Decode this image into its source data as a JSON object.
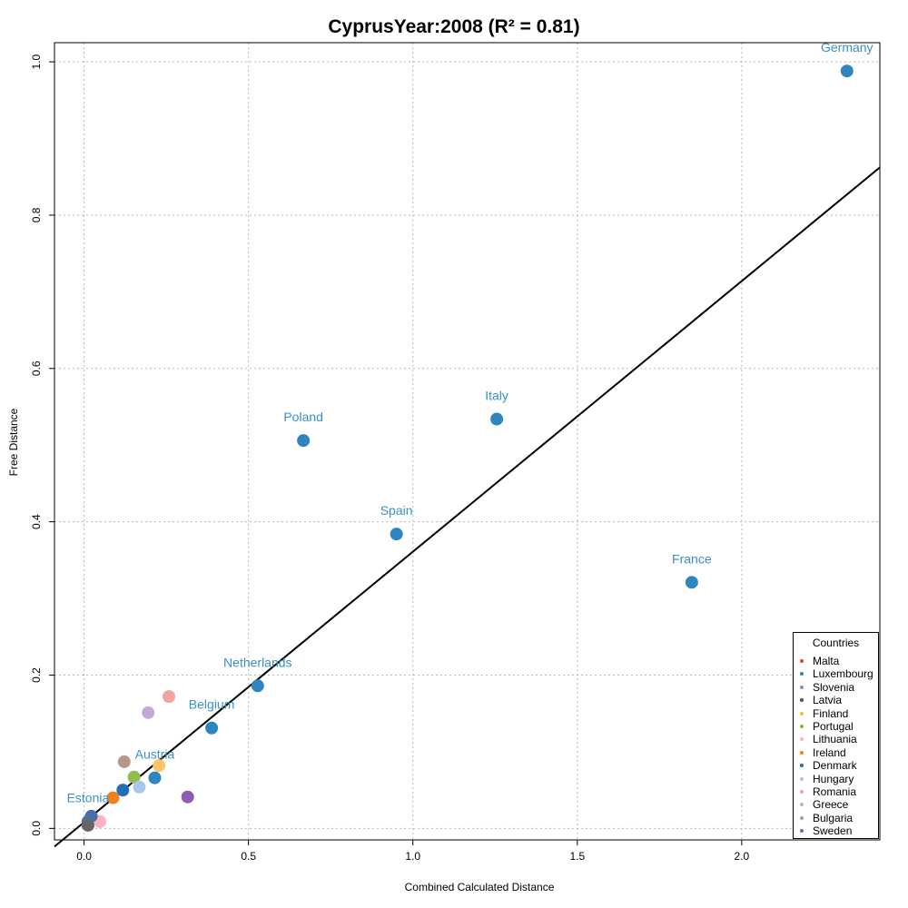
{
  "chart_data": {
    "type": "scatter",
    "title": "CyprusYear:2008 (R² = 0.81)",
    "xlabel": "Combined Calculated Distance",
    "ylabel": "Free Distance",
    "xlim": [
      -0.09,
      2.42
    ],
    "ylim": [
      -0.015,
      1.025
    ],
    "xticks": [
      0.0,
      0.5,
      1.0,
      1.5,
      2.0
    ],
    "xtick_labels": [
      "0.0",
      "0.5",
      "1.0",
      "1.5",
      "2.0"
    ],
    "yticks": [
      0.0,
      0.2,
      0.4,
      0.6,
      0.8,
      1.0
    ],
    "ytick_labels": [
      "0.0",
      "0.2",
      "0.4",
      "0.6",
      "0.8",
      "1.0"
    ],
    "grid": true,
    "regression_line": {
      "intercept": 0.008,
      "slope": 0.353
    },
    "points": [
      {
        "x": 2.32,
        "y": 0.988,
        "color": "#2E86C1",
        "label": "Germany"
      },
      {
        "x": 1.255,
        "y": 0.534,
        "color": "#2E86C1",
        "label": "Italy"
      },
      {
        "x": 0.667,
        "y": 0.506,
        "color": "#2E86C1",
        "label": "Poland"
      },
      {
        "x": 0.95,
        "y": 0.384,
        "color": "#2E86C1",
        "label": "Spain"
      },
      {
        "x": 1.848,
        "y": 0.321,
        "color": "#2E86C1",
        "label": "France"
      },
      {
        "x": 0.528,
        "y": 0.186,
        "color": "#2E86C1",
        "label": "Netherlands"
      },
      {
        "x": 0.388,
        "y": 0.131,
        "color": "#2E86C1",
        "label": "Belgium"
      },
      {
        "x": 0.215,
        "y": 0.066,
        "color": "#2E86C1",
        "label": "Austria"
      },
      {
        "x": 0.012,
        "y": 0.009,
        "color": "#4A6FA5",
        "label": "Estonia"
      },
      {
        "x": 0.258,
        "y": 0.172,
        "color": "#F4A3A3",
        "label": ""
      },
      {
        "x": 0.195,
        "y": 0.151,
        "color": "#C6A8D6",
        "label": ""
      },
      {
        "x": 0.122,
        "y": 0.087,
        "color": "#B8968A",
        "label": ""
      },
      {
        "x": 0.228,
        "y": 0.082,
        "color": "#FFC266",
        "label": ""
      },
      {
        "x": 0.152,
        "y": 0.067,
        "color": "#8FBF4A",
        "label": ""
      },
      {
        "x": 0.168,
        "y": 0.054,
        "color": "#A8C6E8",
        "label": ""
      },
      {
        "x": 0.118,
        "y": 0.05,
        "color": "#1F6FB8",
        "label": ""
      },
      {
        "x": 0.088,
        "y": 0.04,
        "color": "#F07F1E",
        "label": ""
      },
      {
        "x": 0.315,
        "y": 0.041,
        "color": "#8E5BB5",
        "label": ""
      },
      {
        "x": 0.048,
        "y": 0.009,
        "color": "#F7B3C2",
        "label": ""
      },
      {
        "x": 0.022,
        "y": 0.016,
        "color": "#4A6FA5",
        "label": ""
      },
      {
        "x": 0.012,
        "y": 0.004,
        "color": "#666666",
        "label": ""
      }
    ],
    "legend": {
      "title": "Countries",
      "placement": "bottom-right",
      "items": [
        {
          "name": "Malta",
          "color": "#D64B1F"
        },
        {
          "name": "Luxembourg",
          "color": "#2E86C1"
        },
        {
          "name": "Slovenia",
          "color": "#7E8FD6"
        },
        {
          "name": "Latvia",
          "color": "#555555"
        },
        {
          "name": "Finland",
          "color": "#F2C230"
        },
        {
          "name": "Portugal",
          "color": "#7DB93A"
        },
        {
          "name": "Lithuania",
          "color": "#F7B3C2"
        },
        {
          "name": "Ireland",
          "color": "#F07F1E"
        },
        {
          "name": "Denmark",
          "color": "#1F6FB8"
        },
        {
          "name": "Hungary",
          "color": "#A8C6E8"
        },
        {
          "name": "Romania",
          "color": "#F4A3A3"
        },
        {
          "name": "Greece",
          "color": "#C6A8D6"
        },
        {
          "name": "Bulgaria",
          "color": "#B8968A"
        },
        {
          "name": "Sweden",
          "color": "#8E5BB5"
        }
      ]
    }
  }
}
